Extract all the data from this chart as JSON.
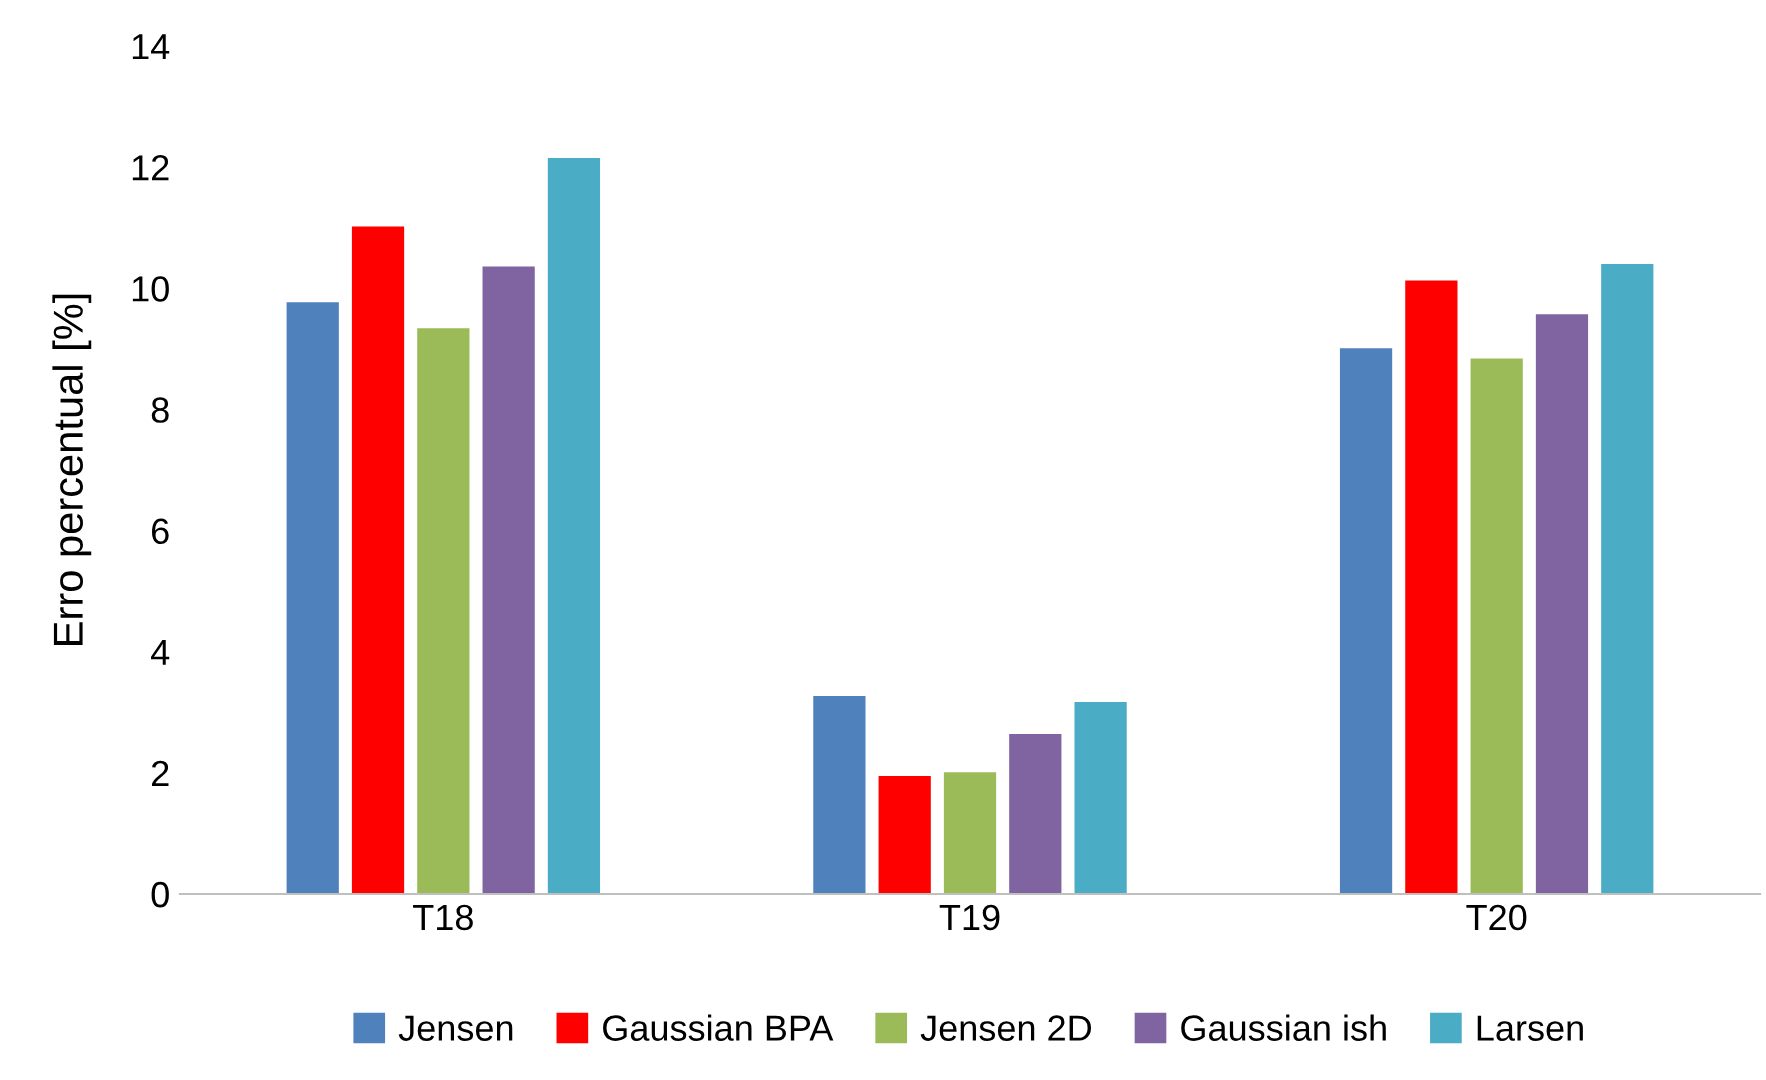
{
  "chart_data": {
    "type": "bar",
    "ylabel": "Erro percentual [%]",
    "categories": [
      "T18",
      "T19",
      "T20"
    ],
    "series": [
      {
        "name": "Jensen",
        "color": "#4f81bd",
        "values": [
          9.77,
          3.27,
          9.01
        ]
      },
      {
        "name": "Gaussian BPA",
        "color": "#ff0000",
        "values": [
          11.02,
          1.95,
          10.13
        ]
      },
      {
        "name": "Jensen 2D",
        "color": "#9bbb59",
        "values": [
          9.34,
          2.01,
          8.84
        ]
      },
      {
        "name": "Gaussian ish",
        "color": "#8064a2",
        "values": [
          10.36,
          2.64,
          9.57
        ]
      },
      {
        "name": "Larsen",
        "color": "#4bacc6",
        "values": [
          12.15,
          3.17,
          10.4
        ]
      }
    ],
    "ylim": [
      0,
      14
    ],
    "yticks": [
      0,
      2,
      4,
      6,
      8,
      10,
      12,
      14
    ],
    "grid": false,
    "legend": "bottom"
  }
}
